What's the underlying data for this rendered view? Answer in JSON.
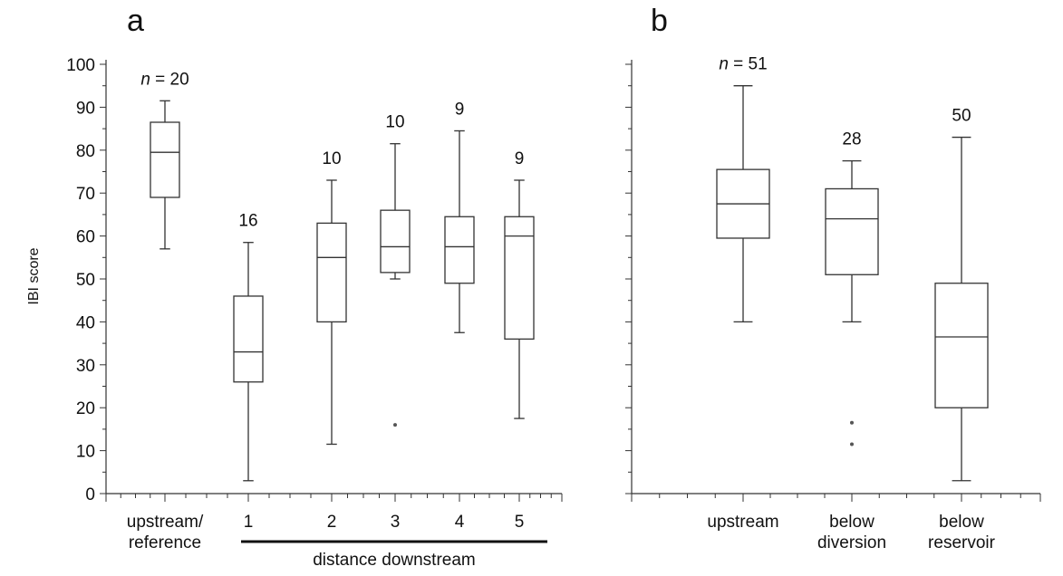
{
  "chart_data": [
    {
      "panel": "a",
      "type": "box",
      "ylabel": "IBI score",
      "ylim": [
        0,
        100
      ],
      "yticks": [
        0,
        10,
        20,
        30,
        40,
        50,
        60,
        70,
        80,
        90,
        100
      ],
      "group_label": "distance downstream",
      "boxes": [
        {
          "label": "upstream/\nreference",
          "n_label": "n = 20",
          "min": 57,
          "q1": 69,
          "median": 79.5,
          "q3": 86.5,
          "max": 91.5,
          "outliers": []
        },
        {
          "label": "1",
          "n_label": "16",
          "min": 3,
          "q1": 26,
          "median": 33,
          "q3": 46,
          "max": 58.5,
          "outliers": []
        },
        {
          "label": "2",
          "n_label": "10",
          "min": 11.5,
          "q1": 40,
          "median": 55,
          "q3": 63,
          "max": 73,
          "outliers": []
        },
        {
          "label": "3",
          "n_label": "10",
          "min": 50,
          "q1": 51.5,
          "median": 57.5,
          "q3": 66,
          "max": 81.5,
          "outliers": [
            16
          ]
        },
        {
          "label": "4",
          "n_label": "9",
          "min": 37.5,
          "q1": 49,
          "median": 57.5,
          "q3": 64.5,
          "max": 84.5,
          "outliers": []
        },
        {
          "label": "5",
          "n_label": "9",
          "min": 17.5,
          "q1": 36,
          "median": 60,
          "q3": 64.5,
          "max": 73,
          "outliers": []
        }
      ]
    },
    {
      "panel": "b",
      "type": "box",
      "ylim": [
        0,
        100
      ],
      "boxes": [
        {
          "label": "upstream",
          "n_label": "n = 51",
          "min": 40,
          "q1": 59.5,
          "median": 67.5,
          "q3": 75.5,
          "max": 95,
          "outliers": []
        },
        {
          "label": "below\ndiversion",
          "n_label": "28",
          "min": 40,
          "q1": 51,
          "median": 64,
          "q3": 71,
          "max": 77.5,
          "outliers": [
            16.5,
            11.5
          ]
        },
        {
          "label": "below\nreservoir",
          "n_label": "50",
          "min": 3,
          "q1": 20,
          "median": 36.5,
          "q3": 49,
          "max": 83,
          "outliers": []
        }
      ]
    }
  ]
}
